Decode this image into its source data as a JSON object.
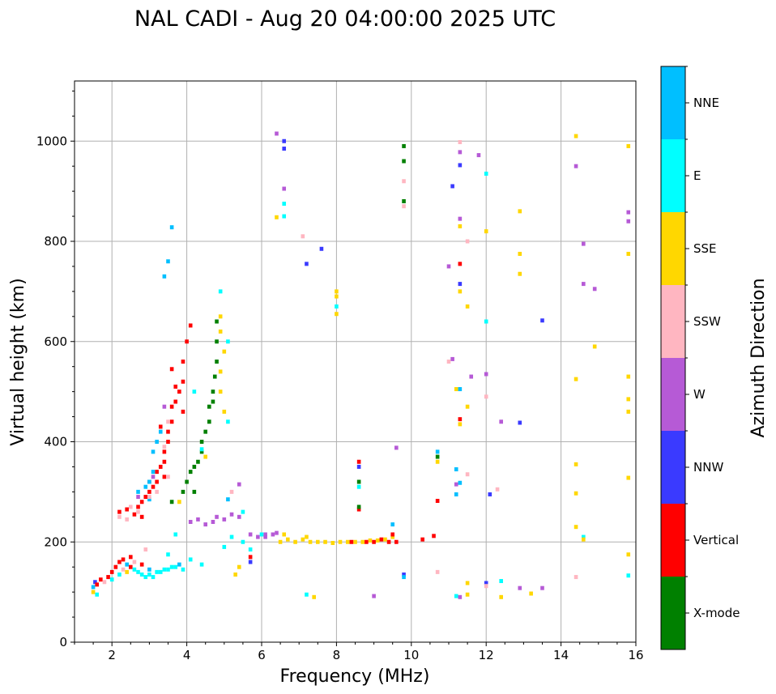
{
  "chart_data": {
    "type": "scatter",
    "title": "NAL CADI - Aug 20 04:00:00 2025 UTC",
    "xlabel": "Frequency (MHz)",
    "ylabel": "Virtual height (km)",
    "xlim": [
      1,
      16
    ],
    "ylim": [
      0,
      1120
    ],
    "xticks": [
      2,
      4,
      6,
      8,
      10,
      12,
      14,
      16
    ],
    "yticks": [
      0,
      200,
      400,
      600,
      800,
      1000
    ],
    "grid": true,
    "colorbar": {
      "label": "Azimuth Direction",
      "categories": [
        "X-mode",
        "Vertical",
        "NNW",
        "W",
        "SSW",
        "SSE",
        "E",
        "NNE"
      ],
      "colors": [
        "#008000",
        "#ff0000",
        "#3a3aff",
        "#b65ad6",
        "#ffb6c1",
        "#ffd700",
        "#00ffff",
        "#00bfff"
      ]
    },
    "point_fields": [
      "frequency_mhz",
      "height_km",
      "direction_index"
    ],
    "points": [
      [
        1.5,
        110,
        7
      ],
      [
        1.5,
        100,
        5
      ],
      [
        1.55,
        120,
        2
      ],
      [
        1.6,
        115,
        1
      ],
      [
        1.6,
        95,
        6
      ],
      [
        1.7,
        125,
        1
      ],
      [
        1.8,
        120,
        4
      ],
      [
        1.9,
        130,
        1
      ],
      [
        2.0,
        140,
        1
      ],
      [
        2.0,
        125,
        6
      ],
      [
        2.1,
        150,
        1
      ],
      [
        2.2,
        160,
        1
      ],
      [
        2.2,
        135,
        6
      ],
      [
        2.3,
        165,
        1
      ],
      [
        2.3,
        145,
        4
      ],
      [
        2.4,
        155,
        7
      ],
      [
        2.4,
        140,
        5
      ],
      [
        2.5,
        150,
        1
      ],
      [
        2.5,
        170,
        1
      ],
      [
        2.6,
        145,
        6
      ],
      [
        2.6,
        160,
        4
      ],
      [
        2.7,
        140,
        6
      ],
      [
        2.8,
        135,
        6
      ],
      [
        2.8,
        155,
        1
      ],
      [
        2.9,
        130,
        6
      ],
      [
        3.0,
        135,
        6
      ],
      [
        3.0,
        145,
        7
      ],
      [
        3.1,
        130,
        6
      ],
      [
        3.2,
        140,
        6
      ],
      [
        3.3,
        140,
        6
      ],
      [
        3.4,
        145,
        6
      ],
      [
        3.5,
        145,
        6
      ],
      [
        3.6,
        150,
        6
      ],
      [
        3.7,
        150,
        6
      ],
      [
        3.8,
        155,
        7
      ],
      [
        3.9,
        145,
        6
      ],
      [
        4.1,
        165,
        6
      ],
      [
        4.4,
        155,
        6
      ],
      [
        3.5,
        175,
        6
      ],
      [
        2.9,
        185,
        4
      ],
      [
        2.2,
        260,
        1
      ],
      [
        2.4,
        265,
        1
      ],
      [
        2.6,
        255,
        1
      ],
      [
        2.7,
        270,
        1
      ],
      [
        2.8,
        280,
        1
      ],
      [
        2.9,
        290,
        1
      ],
      [
        3.0,
        300,
        1
      ],
      [
        3.1,
        310,
        1
      ],
      [
        3.2,
        320,
        1
      ],
      [
        3.2,
        340,
        1
      ],
      [
        3.3,
        350,
        1
      ],
      [
        3.4,
        360,
        1
      ],
      [
        3.4,
        380,
        1
      ],
      [
        3.5,
        400,
        1
      ],
      [
        3.5,
        420,
        1
      ],
      [
        3.6,
        440,
        1
      ],
      [
        3.6,
        470,
        1
      ],
      [
        3.7,
        480,
        1
      ],
      [
        3.7,
        510,
        1
      ],
      [
        3.8,
        500,
        1
      ],
      [
        3.9,
        460,
        1
      ],
      [
        3.9,
        520,
        1
      ],
      [
        3.9,
        560,
        1
      ],
      [
        4.0,
        600,
        1
      ],
      [
        4.1,
        632,
        1
      ],
      [
        3.6,
        545,
        1
      ],
      [
        3.3,
        430,
        1
      ],
      [
        3.4,
        330,
        1
      ],
      [
        3.0,
        320,
        1
      ],
      [
        2.8,
        250,
        1
      ],
      [
        2.7,
        300,
        7
      ],
      [
        2.9,
        310,
        7
      ],
      [
        3.0,
        320,
        7
      ],
      [
        3.1,
        340,
        7
      ],
      [
        3.1,
        380,
        7
      ],
      [
        3.2,
        400,
        7
      ],
      [
        3.3,
        420,
        7
      ],
      [
        3.4,
        730,
        7
      ],
      [
        3.5,
        760,
        7
      ],
      [
        3.6,
        828,
        7
      ],
      [
        3.0,
        285,
        7
      ],
      [
        2.2,
        250,
        4
      ],
      [
        2.4,
        245,
        4
      ],
      [
        2.5,
        270,
        4
      ],
      [
        2.7,
        260,
        4
      ],
      [
        3.0,
        290,
        4
      ],
      [
        3.2,
        300,
        4
      ],
      [
        3.5,
        330,
        4
      ],
      [
        3.4,
        390,
        4
      ],
      [
        3.5,
        440,
        4
      ],
      [
        2.7,
        290,
        3
      ],
      [
        3.1,
        330,
        3
      ],
      [
        3.4,
        470,
        3
      ],
      [
        3.9,
        300,
        0
      ],
      [
        4.0,
        320,
        0
      ],
      [
        4.1,
        340,
        0
      ],
      [
        4.2,
        350,
        0
      ],
      [
        4.3,
        360,
        0
      ],
      [
        4.4,
        380,
        0
      ],
      [
        4.4,
        400,
        0
      ],
      [
        4.5,
        420,
        0
      ],
      [
        4.6,
        440,
        0
      ],
      [
        4.6,
        470,
        0
      ],
      [
        4.7,
        480,
        0
      ],
      [
        4.7,
        500,
        0
      ],
      [
        4.75,
        530,
        0
      ],
      [
        4.8,
        560,
        0
      ],
      [
        4.8,
        600,
        0
      ],
      [
        4.8,
        640,
        0
      ],
      [
        4.2,
        300,
        0
      ],
      [
        3.6,
        280,
        0
      ],
      [
        4.9,
        500,
        5
      ],
      [
        4.9,
        540,
        5
      ],
      [
        5.0,
        580,
        5
      ],
      [
        4.9,
        620,
        5
      ],
      [
        4.9,
        650,
        5
      ],
      [
        5.0,
        460,
        5
      ],
      [
        4.5,
        370,
        5
      ],
      [
        3.8,
        280,
        5
      ],
      [
        5.1,
        440,
        6
      ],
      [
        5.1,
        600,
        6
      ],
      [
        4.9,
        700,
        6
      ],
      [
        4.2,
        500,
        6
      ],
      [
        4.4,
        385,
        6
      ],
      [
        3.7,
        215,
        6
      ],
      [
        4.3,
        245,
        3
      ],
      [
        4.5,
        235,
        3
      ],
      [
        4.7,
        240,
        3
      ],
      [
        4.8,
        250,
        3
      ],
      [
        5.0,
        245,
        3
      ],
      [
        5.2,
        255,
        3
      ],
      [
        5.4,
        250,
        3
      ],
      [
        5.7,
        215,
        3
      ],
      [
        5.9,
        210,
        3
      ],
      [
        6.1,
        215,
        3
      ],
      [
        6.3,
        215,
        3
      ],
      [
        6.4,
        218,
        3
      ],
      [
        4.1,
        240,
        3
      ],
      [
        5.2,
        210,
        6
      ],
      [
        5.5,
        200,
        6
      ],
      [
        5.0,
        190,
        6
      ],
      [
        5.7,
        185,
        6
      ],
      [
        6.0,
        215,
        6
      ],
      [
        7.2,
        95,
        6
      ],
      [
        6.5,
        200,
        5
      ],
      [
        6.7,
        205,
        5
      ],
      [
        6.9,
        200,
        5
      ],
      [
        7.1,
        205,
        5
      ],
      [
        7.3,
        200,
        5
      ],
      [
        7.5,
        200,
        5
      ],
      [
        7.7,
        200,
        5
      ],
      [
        7.9,
        198,
        5
      ],
      [
        8.1,
        200,
        5
      ],
      [
        8.3,
        200,
        5
      ],
      [
        8.5,
        200,
        5
      ],
      [
        8.7,
        200,
        5
      ],
      [
        8.9,
        203,
        5
      ],
      [
        9.1,
        203,
        5
      ],
      [
        9.3,
        205,
        5
      ],
      [
        9.5,
        210,
        5
      ],
      [
        7.2,
        210,
        5
      ],
      [
        6.6,
        215,
        5
      ],
      [
        8.4,
        200,
        1
      ],
      [
        8.8,
        200,
        1
      ],
      [
        9.0,
        200,
        1
      ],
      [
        9.2,
        205,
        1
      ],
      [
        9.4,
        200,
        1
      ],
      [
        9.6,
        200,
        1
      ],
      [
        10.3,
        205,
        1
      ],
      [
        10.6,
        212,
        1
      ],
      [
        9.5,
        215,
        1
      ],
      [
        8.6,
        360,
        1
      ],
      [
        8.6,
        350,
        2
      ],
      [
        8.6,
        320,
        0
      ],
      [
        8.6,
        310,
        6
      ],
      [
        8.6,
        265,
        1
      ],
      [
        8.6,
        270,
        0
      ],
      [
        9.5,
        235,
        7
      ],
      [
        9.6,
        388,
        3
      ],
      [
        9.8,
        135,
        2
      ],
      [
        9.8,
        130,
        7
      ],
      [
        10.7,
        380,
        7
      ],
      [
        10.7,
        370,
        0
      ],
      [
        10.7,
        360,
        5
      ],
      [
        10.7,
        282,
        1
      ],
      [
        11.2,
        345,
        7
      ],
      [
        11.2,
        315,
        3
      ],
      [
        11.3,
        318,
        7
      ],
      [
        11.5,
        335,
        4
      ],
      [
        11.2,
        295,
        7
      ],
      [
        11.3,
        505,
        7
      ],
      [
        11.2,
        505,
        5
      ],
      [
        11.5,
        470,
        5
      ],
      [
        11.3,
        445,
        1
      ],
      [
        11.3,
        435,
        5
      ],
      [
        11.6,
        530,
        3
      ],
      [
        12.0,
        535,
        3
      ],
      [
        12.0,
        490,
        4
      ],
      [
        12.4,
        440,
        3
      ],
      [
        12.9,
        438,
        2
      ],
      [
        12.1,
        295,
        2
      ],
      [
        12.3,
        305,
        4
      ],
      [
        11.1,
        565,
        3
      ],
      [
        11.0,
        560,
        4
      ],
      [
        12.0,
        640,
        6
      ],
      [
        11.3,
        700,
        5
      ],
      [
        11.5,
        670,
        5
      ],
      [
        11.3,
        715,
        2
      ],
      [
        11.3,
        755,
        1
      ],
      [
        11.0,
        750,
        3
      ],
      [
        11.3,
        830,
        5
      ],
      [
        11.3,
        845,
        3
      ],
      [
        11.5,
        800,
        4
      ],
      [
        12.0,
        820,
        5
      ],
      [
        12.9,
        860,
        5
      ],
      [
        12.9,
        775,
        5
      ],
      [
        12.9,
        735,
        5
      ],
      [
        13.5,
        642,
        2
      ],
      [
        11.1,
        910,
        2
      ],
      [
        11.3,
        952,
        2
      ],
      [
        11.3,
        978,
        3
      ],
      [
        11.3,
        998,
        4
      ],
      [
        11.8,
        972,
        3
      ],
      [
        12.0,
        935,
        6
      ],
      [
        9.8,
        990,
        0
      ],
      [
        9.8,
        960,
        0
      ],
      [
        9.8,
        920,
        4
      ],
      [
        9.8,
        880,
        0
      ],
      [
        9.8,
        870,
        4
      ],
      [
        6.6,
        1000,
        2
      ],
      [
        6.6,
        985,
        2
      ],
      [
        6.4,
        1015,
        3
      ],
      [
        6.6,
        905,
        3
      ],
      [
        6.6,
        875,
        6
      ],
      [
        6.6,
        850,
        6
      ],
      [
        6.4,
        848,
        5
      ],
      [
        7.6,
        785,
        2
      ],
      [
        7.2,
        755,
        2
      ],
      [
        8.0,
        700,
        5
      ],
      [
        8.0,
        690,
        5
      ],
      [
        8.0,
        670,
        6
      ],
      [
        8.0,
        655,
        5
      ],
      [
        7.1,
        810,
        4
      ],
      [
        10.7,
        140,
        4
      ],
      [
        11.2,
        92,
        6
      ],
      [
        11.3,
        90,
        3
      ],
      [
        11.5,
        95,
        5
      ],
      [
        11.5,
        118,
        5
      ],
      [
        12.0,
        118,
        2
      ],
      [
        12.0,
        112,
        4
      ],
      [
        12.4,
        122,
        6
      ],
      [
        12.4,
        90,
        5
      ],
      [
        12.9,
        108,
        3
      ],
      [
        13.2,
        97,
        5
      ],
      [
        13.5,
        108,
        3
      ],
      [
        9.0,
        92,
        3
      ],
      [
        7.4,
        90,
        5
      ],
      [
        14.4,
        1010,
        5
      ],
      [
        14.4,
        950,
        3
      ],
      [
        14.6,
        795,
        3
      ],
      [
        14.6,
        715,
        3
      ],
      [
        14.9,
        705,
        3
      ],
      [
        14.9,
        590,
        5
      ],
      [
        14.4,
        525,
        5
      ],
      [
        14.4,
        355,
        5
      ],
      [
        14.4,
        297,
        5
      ],
      [
        14.4,
        230,
        5
      ],
      [
        14.6,
        210,
        6
      ],
      [
        14.6,
        205,
        5
      ],
      [
        14.4,
        130,
        4
      ],
      [
        15.8,
        990,
        5
      ],
      [
        15.8,
        858,
        3
      ],
      [
        15.8,
        840,
        3
      ],
      [
        15.8,
        775,
        5
      ],
      [
        15.8,
        530,
        5
      ],
      [
        15.8,
        485,
        5
      ],
      [
        15.8,
        460,
        5
      ],
      [
        15.8,
        328,
        5
      ],
      [
        15.8,
        175,
        5
      ],
      [
        15.8,
        133,
        6
      ],
      [
        5.2,
        300,
        4
      ],
      [
        5.4,
        315,
        3
      ],
      [
        5.1,
        285,
        7
      ],
      [
        5.4,
        150,
        5
      ],
      [
        5.3,
        135,
        5
      ],
      [
        5.7,
        170,
        1
      ],
      [
        5.7,
        160,
        2
      ],
      [
        5.5,
        260,
        6
      ],
      [
        6.1,
        210,
        3
      ]
    ]
  }
}
